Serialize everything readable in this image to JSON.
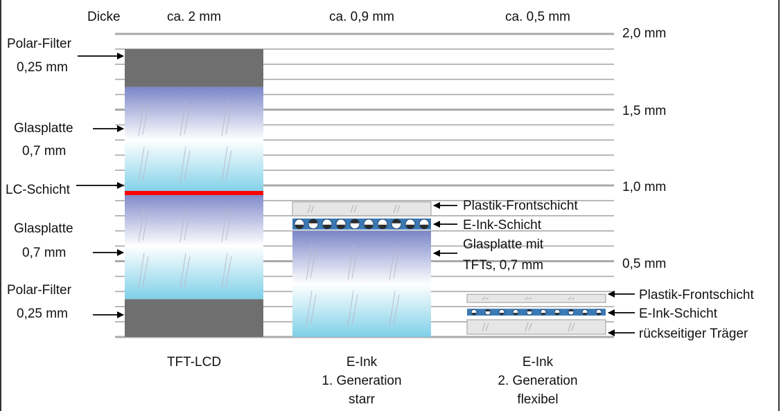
{
  "header": {
    "thickness_label": "Dicke",
    "columns": [
      {
        "thickness": "ca. 2 mm",
        "name_lines": [
          "TFT-LCD"
        ]
      },
      {
        "thickness": "ca. 0,9 mm",
        "name_lines": [
          "E-Ink",
          "1. Generation",
          "starr"
        ]
      },
      {
        "thickness": "ca. 0,5 mm",
        "name_lines": [
          "E-Ink",
          "2. Generation",
          "flexibel"
        ]
      }
    ]
  },
  "scale": {
    "max_mm": 2.0,
    "minor_step_mm": 0.1,
    "labels": [
      {
        "mm": 2.0,
        "text": "2,0 mm"
      },
      {
        "mm": 1.5,
        "text": "1,5 mm"
      },
      {
        "mm": 1.0,
        "text": "1,0 mm"
      },
      {
        "mm": 0.5,
        "text": "0,5 mm"
      }
    ]
  },
  "tft_lcd": {
    "layers": [
      {
        "kind": "polar",
        "thickness_mm": 0.25,
        "label_lines": [
          "Polar-Filter",
          "0,25 mm"
        ]
      },
      {
        "kind": "glass",
        "thickness_mm": 0.7,
        "label_lines": [
          "Glasplatte",
          "0,7 mm"
        ]
      },
      {
        "kind": "lc",
        "thickness_mm": 0.0,
        "label_lines": [
          "LC-Schicht"
        ]
      },
      {
        "kind": "glass",
        "thickness_mm": 0.7,
        "label_lines": [
          "Glasplatte",
          "0,7 mm"
        ]
      },
      {
        "kind": "polar",
        "thickness_mm": 0.25,
        "label_lines": [
          "Polar-Filter",
          "0,25 mm"
        ]
      }
    ]
  },
  "eink_gen1": {
    "layers": [
      {
        "kind": "plastic",
        "thickness_mm": 0.1,
        "label_lines": [
          "Plastik-Frontschicht"
        ]
      },
      {
        "kind": "ink",
        "thickness_mm": 0.1,
        "label_lines": [
          "E-Ink-Schicht"
        ]
      },
      {
        "kind": "glass",
        "thickness_mm": 0.7,
        "label_lines": [
          "Glasplatte mit",
          "TFTs, 0,7 mm"
        ]
      }
    ]
  },
  "eink_gen2": {
    "layers": [
      {
        "kind": "plastic",
        "thickness_mm": 0.1,
        "label_lines": [
          "Plastik-Frontschicht"
        ]
      },
      {
        "kind": "ink",
        "thickness_mm": 0.1,
        "label_lines": [
          "E-Ink-Schicht"
        ]
      },
      {
        "kind": "plastic",
        "thickness_mm": 0.1,
        "label_lines": [
          "rückseitiger Träger"
        ]
      }
    ]
  },
  "colors": {
    "polar_filter": "#6f6f6f",
    "lc_layer": "#ff0000",
    "glass_top": "#7b86c8",
    "glass_mid": "#ffffff",
    "glass_bottom": "#7fd0e8",
    "ink_band": "#3a7ab5",
    "plastic": "#e6e6e6",
    "grid": "#a9a9a9"
  }
}
